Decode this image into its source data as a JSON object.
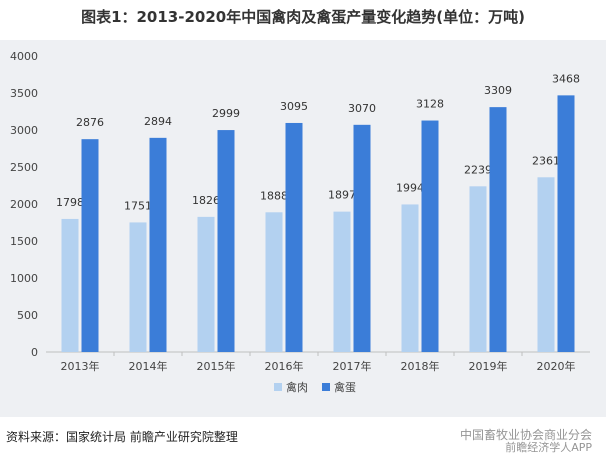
{
  "title": "图表1：2013-2020年中国禽肉及禽蛋产量变化趋势(单位：万吨)",
  "source": "资料来源：国家统计局 前瞻产业研究院整理",
  "watermark": {
    "line1": "中国畜牧业协会商业分会",
    "line2": "前瞻经济学人APP"
  },
  "colors": {
    "poultry_meat": "#b3d1f0",
    "eggs": "#3b7dd8",
    "panel_bg": "#eef0f3"
  },
  "chart_data": {
    "type": "bar",
    "categories": [
      "2013年",
      "2014年",
      "2015年",
      "2016年",
      "2017年",
      "2018年",
      "2019年",
      "2020年"
    ],
    "series": [
      {
        "name": "禽肉",
        "values": [
          1798,
          1751,
          1826,
          1888,
          1897,
          1994,
          2239,
          2361
        ]
      },
      {
        "name": "禽蛋",
        "values": [
          2876,
          2894,
          2999,
          3095,
          3070,
          3128,
          3309,
          3468
        ]
      }
    ],
    "ylim": [
      0,
      4000
    ],
    "yticks": [
      0,
      500,
      1000,
      1500,
      2000,
      2500,
      3000,
      3500,
      4000
    ],
    "legend_position": "bottom",
    "grid": false
  }
}
